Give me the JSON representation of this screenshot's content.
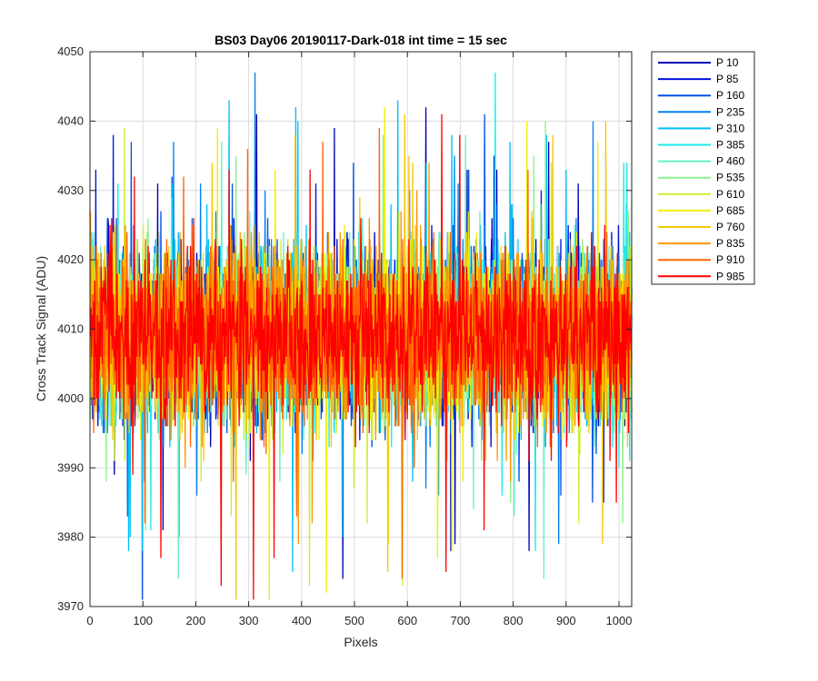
{
  "chart_data": {
    "type": "line",
    "title": "BS03 Day06 20190117-Dark-018 int time = 15 sec",
    "xlabel": "Pixels",
    "ylabel": "Cross Track Signal (ADU)",
    "xlim": [
      0,
      1024
    ],
    "ylim": [
      3970,
      4050
    ],
    "xticks": [
      0,
      100,
      200,
      300,
      400,
      500,
      600,
      700,
      800,
      900,
      1000
    ],
    "yticks": [
      3970,
      3980,
      3990,
      4000,
      4010,
      4020,
      4030,
      4040,
      4050
    ],
    "grid": true,
    "legend_position": "outside-top-right",
    "n_points_per_series": 1024,
    "signal_mean": 4009,
    "signal_spread": 6,
    "series": [
      {
        "name": "P 10",
        "color": "#0000b4"
      },
      {
        "name": "P 85",
        "color": "#0011dd"
      },
      {
        "name": "P 160",
        "color": "#0050e6"
      },
      {
        "name": "P 235",
        "color": "#0080f0"
      },
      {
        "name": "P 310",
        "color": "#00bff5"
      },
      {
        "name": "P 385",
        "color": "#1ee8e8"
      },
      {
        "name": "P 460",
        "color": "#66f0c8"
      },
      {
        "name": "P 535",
        "color": "#8cf08c"
      },
      {
        "name": "P 610",
        "color": "#c8f032"
      },
      {
        "name": "P 685",
        "color": "#f0f000"
      },
      {
        "name": "P 760",
        "color": "#f5c800"
      },
      {
        "name": "P 835",
        "color": "#ff9600"
      },
      {
        "name": "P 910",
        "color": "#ff6400"
      },
      {
        "name": "P 985",
        "color": "#ff0000"
      }
    ]
  }
}
